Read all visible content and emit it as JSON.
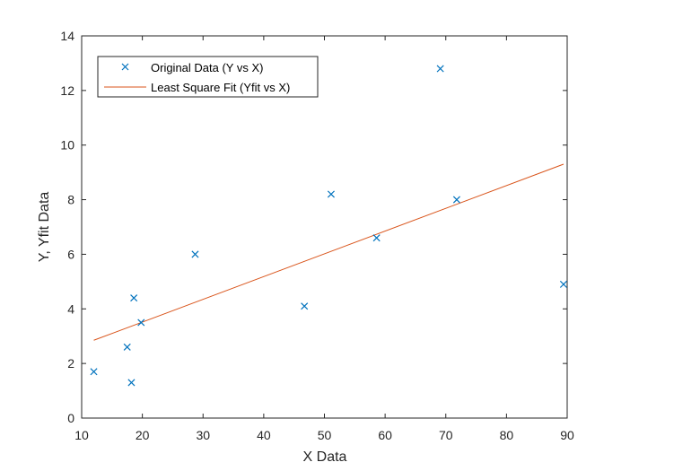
{
  "chart_data": {
    "type": "scatter",
    "xlabel": "X Data",
    "ylabel": "Y, Yfit Data",
    "xlim": [
      10,
      90
    ],
    "ylim": [
      0,
      14
    ],
    "xticks": [
      "10",
      "20",
      "30",
      "40",
      "50",
      "60",
      "70",
      "80",
      "90"
    ],
    "yticks": [
      "0",
      "2",
      "4",
      "6",
      "8",
      "10",
      "12",
      "14"
    ],
    "grid": false,
    "legend_position": "top-left",
    "series": [
      {
        "name": "Original Data (Y vs X)",
        "kind": "scatter",
        "marker": "x",
        "color": "#0072BD",
        "x": [
          12.0,
          17.5,
          18.2,
          18.6,
          19.8,
          28.7,
          46.7,
          51.1,
          58.6,
          69.1,
          71.8,
          89.4
        ],
        "y": [
          1.7,
          2.6,
          1.3,
          4.4,
          3.5,
          6.0,
          4.1,
          8.2,
          6.6,
          12.8,
          8.0,
          4.9
        ]
      },
      {
        "name": "Least Square Fit (Yfit vs X)",
        "kind": "line",
        "color": "#D95319",
        "x": [
          12.0,
          89.4
        ],
        "y": [
          2.85,
          9.3
        ]
      }
    ]
  }
}
